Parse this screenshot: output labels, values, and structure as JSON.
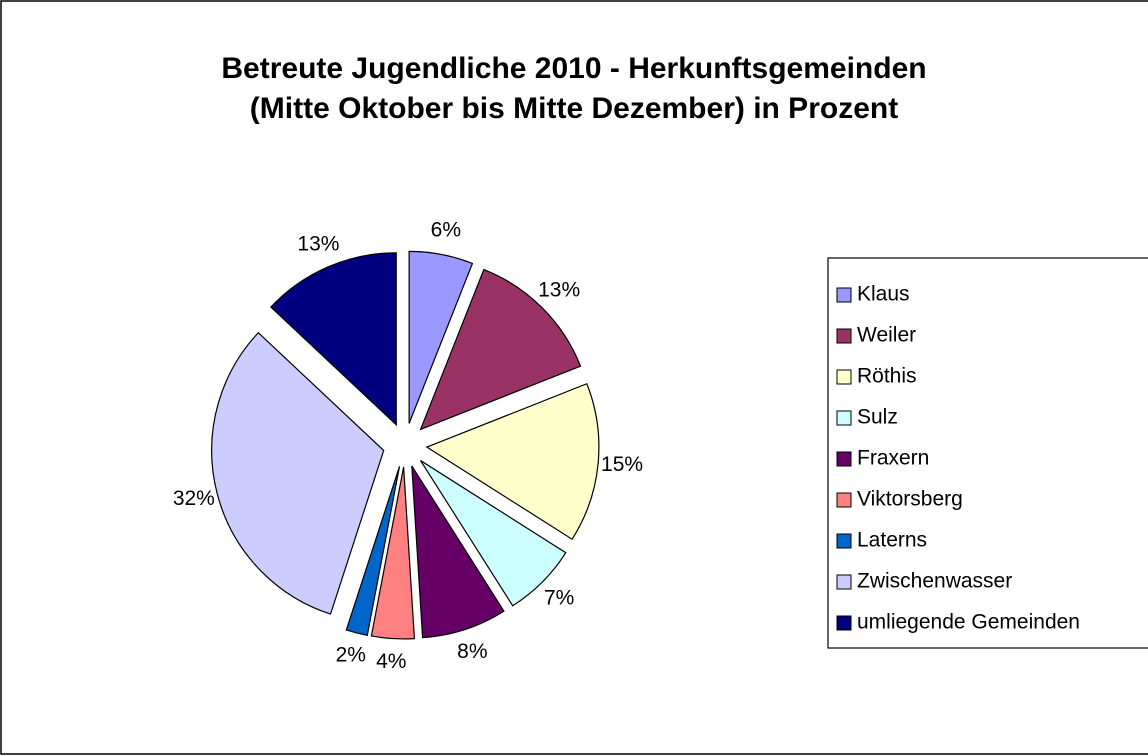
{
  "chart_data": {
    "type": "pie",
    "title": "Betreute Jugendliche 2010 - Herkunftsgemeinden",
    "subtitle": "(Mitte Oktober bis Mitte Dezember) in Prozent",
    "categories": [
      "Klaus",
      "Weiler",
      "Röthis",
      "Sulz",
      "Fraxern",
      "Viktorsberg",
      "Laterns",
      "Zwischenwasser",
      "umliegende Gemeinden"
    ],
    "values": [
      6,
      13,
      15,
      7,
      8,
      4,
      2,
      32,
      13
    ],
    "value_labels": [
      "6%",
      "13%",
      "15%",
      "7%",
      "8%",
      "4%",
      "2%",
      "32%",
      "13%"
    ],
    "colors": [
      "#9999ff",
      "#993366",
      "#ffffcc",
      "#ccffff",
      "#660066",
      "#ff8080",
      "#0066cc",
      "#ccccff",
      "#000080"
    ],
    "legend": "right"
  }
}
